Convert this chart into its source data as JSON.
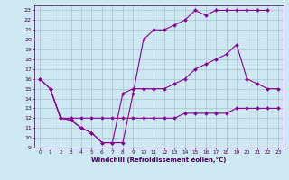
{
  "xlabel": "Windchill (Refroidissement éolien,°C)",
  "bg_color": "#cde8f0",
  "grid_color": "#a0b8cc",
  "line_color": "#880099",
  "line1_x": [
    0,
    1,
    2,
    3,
    4,
    5,
    6,
    7,
    8,
    9,
    10,
    11,
    12,
    13,
    14,
    15,
    16,
    17,
    18,
    19,
    20,
    21,
    22
  ],
  "line1_y": [
    16,
    15,
    12,
    11.8,
    11,
    10.5,
    9.5,
    9.5,
    9.5,
    14.5,
    20,
    21,
    21,
    21.5,
    22,
    23,
    22.5,
    23,
    23,
    23,
    23,
    23,
    23
  ],
  "line2_x": [
    0,
    1,
    2,
    3,
    4,
    5,
    6,
    7,
    8,
    9,
    10,
    11,
    12,
    13,
    14,
    15,
    16,
    17,
    18,
    19,
    20,
    21,
    22,
    23
  ],
  "line2_y": [
    16,
    15,
    12,
    11.8,
    11,
    10.5,
    9.5,
    9.5,
    14.5,
    15,
    15,
    15,
    15,
    15.5,
    16,
    17,
    17.5,
    18,
    18.5,
    19.5,
    16,
    15.5,
    15,
    15
  ],
  "line3_x": [
    1,
    2,
    3,
    4,
    5,
    6,
    7,
    8,
    9,
    10,
    11,
    12,
    13,
    14,
    15,
    16,
    17,
    18,
    19,
    20,
    21,
    22,
    23
  ],
  "line3_y": [
    15,
    12,
    12,
    12,
    12,
    12,
    12,
    12,
    12,
    12,
    12,
    12,
    12,
    12.5,
    12.5,
    12.5,
    12.5,
    12.5,
    13,
    13,
    13,
    13,
    13
  ],
  "xlim": [
    -0.5,
    23.5
  ],
  "ylim": [
    9,
    23.5
  ],
  "xticks": [
    0,
    1,
    2,
    3,
    4,
    5,
    6,
    7,
    8,
    9,
    10,
    11,
    12,
    13,
    14,
    15,
    16,
    17,
    18,
    19,
    20,
    21,
    22,
    23
  ],
  "yticks": [
    9,
    10,
    11,
    12,
    13,
    14,
    15,
    16,
    17,
    18,
    19,
    20,
    21,
    22,
    23
  ]
}
